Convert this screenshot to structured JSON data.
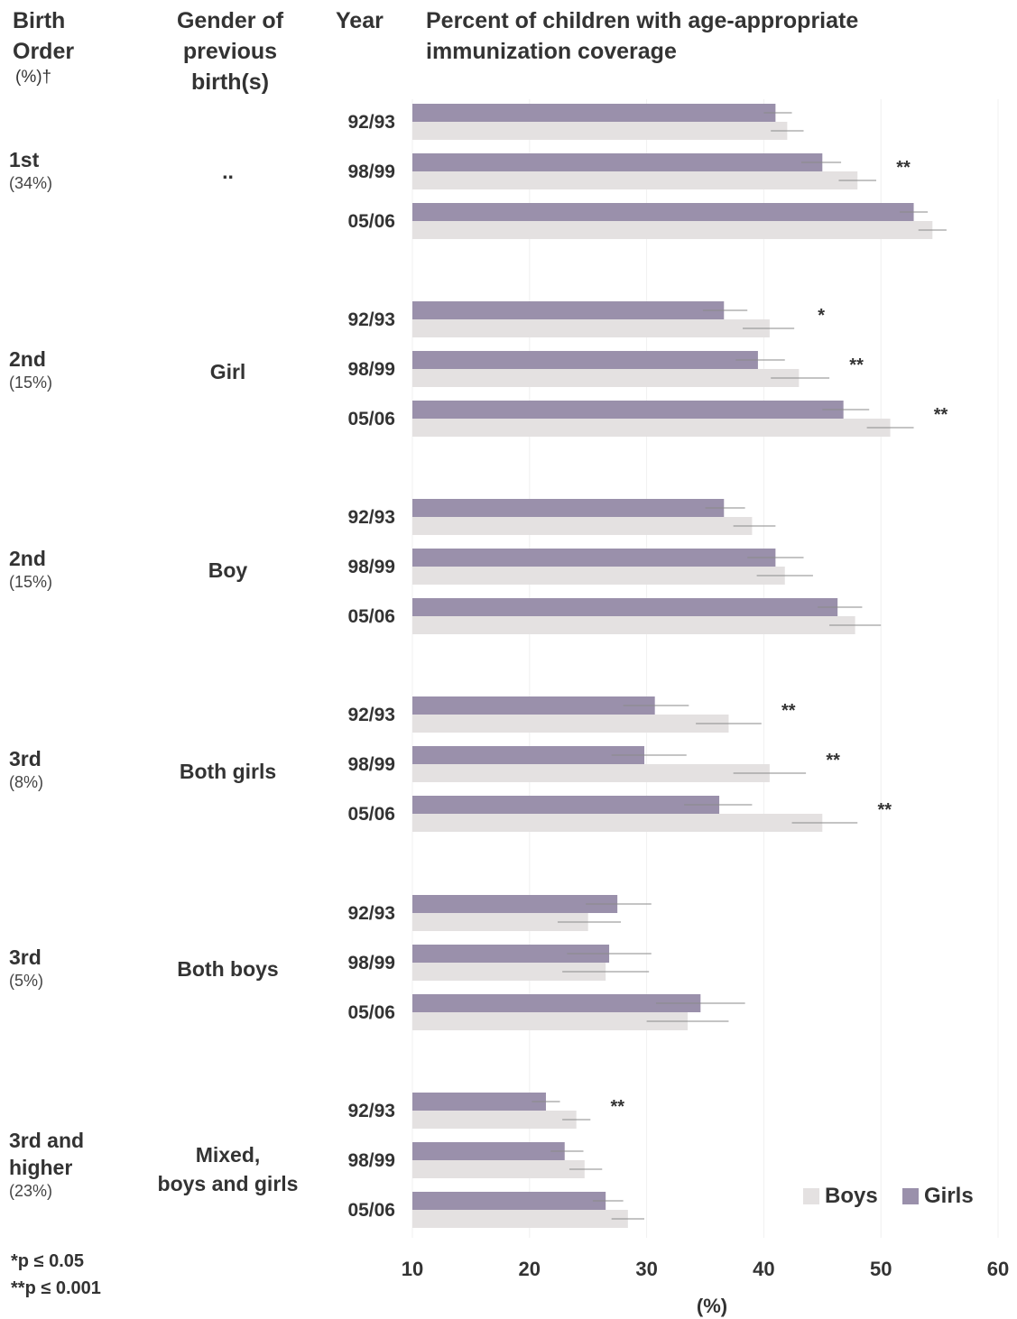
{
  "header": {
    "birth_order_line1": "Birth",
    "birth_order_line2": "Order",
    "birth_order_sub": "(%)†",
    "gender_line1": "Gender of",
    "gender_line2": "previous",
    "gender_line3": "birth(s)",
    "year": "Year",
    "title_line1": "Percent of children with age-appropriate",
    "title_line2": "immunization coverage"
  },
  "groups": [
    {
      "order": "1st",
      "pct": "(34%)",
      "gender": ".."
    },
    {
      "order": "2nd",
      "pct": "(15%)",
      "gender": "Girl"
    },
    {
      "order": "2nd",
      "pct": "(15%)",
      "gender": "Boy"
    },
    {
      "order": "3rd",
      "pct": "(8%)",
      "gender": "Both girls"
    },
    {
      "order": "3rd",
      "pct": "(5%)",
      "gender": "Both boys"
    },
    {
      "order_line1": "3rd and",
      "order_line2": "higher",
      "pct": "(23%)",
      "gender_line1": "Mixed,",
      "gender_line2": "boys and girls"
    }
  ],
  "years": [
    "92/93",
    "98/99",
    "05/06"
  ],
  "footnotes": {
    "single": "*p ≤ 0.05",
    "double": "**p ≤ 0.001"
  },
  "legend": {
    "boys": "Boys",
    "girls": "Girls"
  },
  "colors": {
    "boys": "#e4e1e1",
    "girls": "#9a90ab",
    "errorbar": "#8a8a8a"
  },
  "chart_data": {
    "type": "bar",
    "orientation": "horizontal",
    "xlabel": "(%)",
    "xlim": [
      10,
      60
    ],
    "xticks": [
      10,
      20,
      30,
      40,
      50,
      60
    ],
    "legend_position": "bottom-right",
    "grid": true,
    "rows": [
      {
        "group": 0,
        "year": "92/93",
        "girls": 41.0,
        "girls_ci": [
          40.0,
          42.4
        ],
        "boys": 42.0,
        "boys_ci": [
          40.6,
          43.4
        ],
        "sig": ""
      },
      {
        "group": 0,
        "year": "98/99",
        "girls": 45.0,
        "girls_ci": [
          43.2,
          46.6
        ],
        "boys": 48.0,
        "boys_ci": [
          46.4,
          49.6
        ],
        "sig": "**"
      },
      {
        "group": 0,
        "year": "05/06",
        "girls": 52.8,
        "girls_ci": [
          51.6,
          54.0
        ],
        "boys": 54.4,
        "boys_ci": [
          53.2,
          55.6
        ],
        "sig": ""
      },
      {
        "group": 1,
        "year": "92/93",
        "girls": 36.6,
        "girls_ci": [
          34.8,
          38.6
        ],
        "boys": 40.5,
        "boys_ci": [
          38.2,
          42.6
        ],
        "sig": "*"
      },
      {
        "group": 1,
        "year": "98/99",
        "girls": 39.5,
        "girls_ci": [
          37.6,
          41.8
        ],
        "boys": 43.0,
        "boys_ci": [
          40.6,
          45.6
        ],
        "sig": "**"
      },
      {
        "group": 1,
        "year": "05/06",
        "girls": 46.8,
        "girls_ci": [
          45.0,
          49.0
        ],
        "boys": 50.8,
        "boys_ci": [
          48.8,
          52.8
        ],
        "sig": "**"
      },
      {
        "group": 2,
        "year": "92/93",
        "girls": 36.6,
        "girls_ci": [
          35.0,
          38.4
        ],
        "boys": 39.0,
        "boys_ci": [
          37.4,
          41.0
        ],
        "sig": ""
      },
      {
        "group": 2,
        "year": "98/99",
        "girls": 41.0,
        "girls_ci": [
          38.6,
          43.4
        ],
        "boys": 41.8,
        "boys_ci": [
          39.4,
          44.2
        ],
        "sig": ""
      },
      {
        "group": 2,
        "year": "05/06",
        "girls": 46.3,
        "girls_ci": [
          44.6,
          48.4
        ],
        "boys": 47.8,
        "boys_ci": [
          45.6,
          50.0
        ],
        "sig": ""
      },
      {
        "group": 3,
        "year": "92/93",
        "girls": 30.7,
        "girls_ci": [
          28.0,
          33.6
        ],
        "boys": 37.0,
        "boys_ci": [
          34.2,
          39.8
        ],
        "sig": "**"
      },
      {
        "group": 3,
        "year": "98/99",
        "girls": 29.8,
        "girls_ci": [
          27.0,
          33.4
        ],
        "boys": 40.5,
        "boys_ci": [
          37.4,
          43.6
        ],
        "sig": "**"
      },
      {
        "group": 3,
        "year": "05/06",
        "girls": 36.2,
        "girls_ci": [
          33.2,
          39.0
        ],
        "boys": 45.0,
        "boys_ci": [
          42.4,
          48.0
        ],
        "sig": "**"
      },
      {
        "group": 4,
        "year": "92/93",
        "girls": 27.5,
        "girls_ci": [
          24.8,
          30.4
        ],
        "boys": 25.0,
        "boys_ci": [
          22.4,
          27.8
        ],
        "sig": ""
      },
      {
        "group": 4,
        "year": "98/99",
        "girls": 26.8,
        "girls_ci": [
          23.2,
          30.4
        ],
        "boys": 26.5,
        "boys_ci": [
          22.8,
          30.2
        ],
        "sig": ""
      },
      {
        "group": 4,
        "year": "05/06",
        "girls": 34.6,
        "girls_ci": [
          30.8,
          38.4
        ],
        "boys": 33.5,
        "boys_ci": [
          30.0,
          37.0
        ],
        "sig": ""
      },
      {
        "group": 5,
        "year": "92/93",
        "girls": 21.4,
        "girls_ci": [
          20.2,
          22.6
        ],
        "boys": 24.0,
        "boys_ci": [
          22.8,
          25.2
        ],
        "sig": "**"
      },
      {
        "group": 5,
        "year": "98/99",
        "girls": 23.0,
        "girls_ci": [
          21.8,
          24.6
        ],
        "boys": 24.7,
        "boys_ci": [
          23.4,
          26.2
        ],
        "sig": ""
      },
      {
        "group": 5,
        "year": "05/06",
        "girls": 26.5,
        "girls_ci": [
          25.4,
          28.0
        ],
        "boys": 28.4,
        "boys_ci": [
          27.0,
          29.8
        ],
        "sig": ""
      }
    ]
  }
}
